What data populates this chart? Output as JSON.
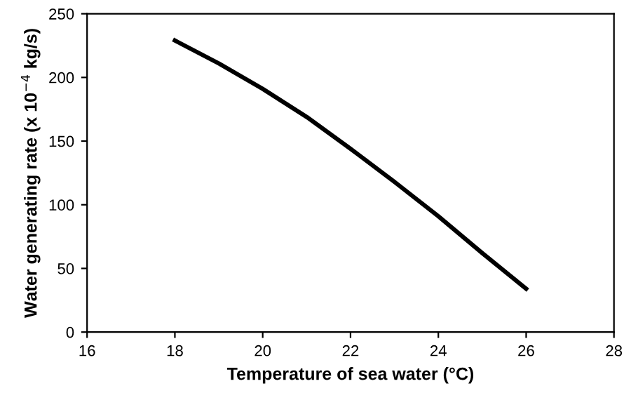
{
  "chart_data": {
    "type": "line",
    "xlabel": "Temperature of sea water (°C)",
    "ylabel": "Water generating rate (x 10$^{−4}$ kg/s)",
    "x": [
      18,
      19,
      20,
      21,
      22,
      23,
      24,
      25,
      26
    ],
    "series": [
      {
        "color": "#000000",
        "values": [
          229,
          211,
          191,
          169,
          144,
          118,
          91,
          62,
          34
        ]
      }
    ],
    "xlim": [
      16,
      28
    ],
    "xticks": [
      16,
      18,
      20,
      22,
      24,
      26,
      28
    ],
    "ylim": [
      0,
      250
    ],
    "yticks": [
      0,
      50,
      100,
      150,
      200,
      250
    ],
    "grid": false,
    "legend": false,
    "marker": "none",
    "line_style": "solid"
  }
}
